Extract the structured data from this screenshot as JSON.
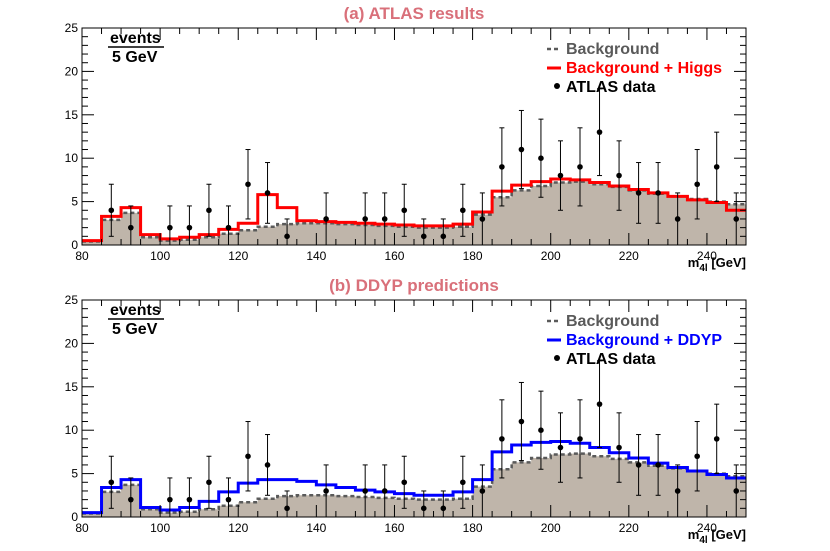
{
  "chart_data": [
    {
      "type": "histogram",
      "title": "(a) ATLAS results",
      "xlabel": "m",
      "xlabel_sub": "4l",
      "xlabel_unit": "[GeV]",
      "ylabel_top": "events",
      "ylabel_bottom": "5 GeV",
      "xlim": [
        80,
        250
      ],
      "ylim": [
        0,
        25
      ],
      "x_ticks": [
        80,
        100,
        120,
        140,
        160,
        180,
        200,
        220,
        240
      ],
      "y_ticks": [
        0,
        5,
        10,
        15,
        20,
        25
      ],
      "bin_edges": [
        80,
        85,
        90,
        95,
        100,
        105,
        110,
        115,
        120,
        125,
        130,
        135,
        140,
        145,
        150,
        155,
        160,
        165,
        170,
        175,
        180,
        185,
        190,
        195,
        200,
        205,
        210,
        215,
        220,
        225,
        230,
        235,
        240,
        245,
        250
      ],
      "series": [
        {
          "name": "Background",
          "style": "dashed-filled",
          "color": "#5a5a5a",
          "fill": "#bfb5aa",
          "values": [
            0.4,
            2.9,
            3.7,
            0.9,
            0.5,
            0.6,
            0.9,
            1.3,
            1.7,
            2.1,
            2.4,
            2.5,
            2.5,
            2.4,
            2.3,
            2.2,
            2.1,
            2.0,
            2.0,
            2.1,
            3.5,
            5.5,
            6.3,
            6.8,
            7.2,
            7.3,
            7.0,
            6.7,
            6.3,
            5.9,
            5.6,
            5.3,
            5.0,
            4.7
          ]
        },
        {
          "name": "Background + Higgs",
          "style": "solid",
          "color": "#ff0000",
          "values": [
            0.5,
            3.3,
            4.3,
            1.2,
            0.7,
            0.9,
            1.2,
            1.8,
            2.5,
            5.8,
            4.3,
            2.8,
            2.7,
            2.6,
            2.5,
            2.4,
            2.3,
            2.2,
            2.2,
            2.4,
            3.8,
            6.2,
            6.9,
            7.3,
            7.6,
            7.5,
            7.2,
            6.8,
            6.4,
            6.0,
            5.6,
            5.2,
            4.9,
            4.0
          ]
        }
      ],
      "data_points": {
        "name": "ATLAS data",
        "x": [
          87.5,
          92.5,
          102.5,
          107.5,
          112.5,
          117.5,
          122.5,
          127.5,
          132.5,
          142.5,
          152.5,
          157.5,
          162.5,
          167.5,
          172.5,
          177.5,
          182.5,
          187.5,
          192.5,
          197.5,
          202.5,
          207.5,
          212.5,
          217.5,
          222.5,
          227.5,
          232.5,
          237.5,
          242.5,
          247.5
        ],
        "y": [
          4,
          2,
          2,
          2,
          4,
          2,
          7,
          6,
          1,
          3,
          3,
          3,
          4,
          1,
          1,
          4,
          3,
          9,
          11,
          10,
          8,
          9,
          13,
          8,
          6,
          6,
          3,
          7,
          9,
          3
        ],
        "err": [
          3,
          2.5,
          2.5,
          2.5,
          3,
          2.5,
          4,
          3.5,
          2,
          3,
          3,
          3,
          3,
          2,
          2,
          3,
          3,
          4.5,
          4.5,
          4.5,
          4,
          4.5,
          5,
          4,
          3.5,
          3.5,
          3,
          4,
          4,
          3
        ]
      },
      "legend": {
        "position": "top-right",
        "entries": [
          "Background",
          "Background + Higgs",
          "ATLAS data"
        ]
      }
    },
    {
      "type": "histogram",
      "title": "(b) DDYP predictions",
      "xlabel": "m",
      "xlabel_sub": "4l",
      "xlabel_unit": "[GeV]",
      "ylabel_top": "events",
      "ylabel_bottom": "5 GeV",
      "xlim": [
        80,
        250
      ],
      "ylim": [
        0,
        25
      ],
      "x_ticks": [
        80,
        100,
        120,
        140,
        160,
        180,
        200,
        220,
        240
      ],
      "y_ticks": [
        0,
        5,
        10,
        15,
        20,
        25
      ],
      "bin_edges": [
        80,
        85,
        90,
        95,
        100,
        105,
        110,
        115,
        120,
        125,
        130,
        135,
        140,
        145,
        150,
        155,
        160,
        165,
        170,
        175,
        180,
        185,
        190,
        195,
        200,
        205,
        210,
        215,
        220,
        225,
        230,
        235,
        240,
        245,
        250
      ],
      "series": [
        {
          "name": "Background",
          "style": "dashed-filled",
          "color": "#5a5a5a",
          "fill": "#bfb5aa",
          "values": [
            0.4,
            2.9,
            3.7,
            0.9,
            0.5,
            0.6,
            0.9,
            1.3,
            1.7,
            2.1,
            2.4,
            2.5,
            2.5,
            2.4,
            2.3,
            2.2,
            2.1,
            2.0,
            2.0,
            2.1,
            3.5,
            5.5,
            6.3,
            6.8,
            7.2,
            7.3,
            7.0,
            6.7,
            6.3,
            5.9,
            5.6,
            5.3,
            5.0,
            4.7
          ]
        },
        {
          "name": "Background + DDYP",
          "style": "solid",
          "color": "#0000ff",
          "values": [
            0.5,
            3.4,
            4.3,
            1.1,
            0.8,
            1.1,
            1.8,
            2.9,
            3.9,
            4.3,
            4.3,
            4.1,
            3.7,
            3.4,
            3.1,
            2.9,
            2.7,
            2.5,
            2.5,
            2.9,
            4.3,
            7.5,
            8.3,
            8.6,
            8.7,
            8.5,
            8.0,
            7.4,
            6.8,
            6.2,
            5.7,
            5.3,
            4.9,
            4.5
          ]
        }
      ],
      "data_points": {
        "name": "ATLAS data",
        "x": [
          87.5,
          92.5,
          102.5,
          107.5,
          112.5,
          117.5,
          122.5,
          127.5,
          132.5,
          142.5,
          152.5,
          157.5,
          162.5,
          167.5,
          172.5,
          177.5,
          182.5,
          187.5,
          192.5,
          197.5,
          202.5,
          207.5,
          212.5,
          217.5,
          222.5,
          227.5,
          232.5,
          237.5,
          242.5,
          247.5
        ],
        "y": [
          4,
          2,
          2,
          2,
          4,
          2,
          7,
          6,
          1,
          3,
          3,
          3,
          4,
          1,
          1,
          4,
          3,
          9,
          11,
          10,
          8,
          9,
          13,
          8,
          6,
          6,
          3,
          7,
          9,
          3
        ],
        "err": [
          3,
          2.5,
          2.5,
          2.5,
          3,
          2.5,
          4,
          3.5,
          2,
          3,
          3,
          3,
          3,
          2,
          2,
          3,
          3,
          4.5,
          4.5,
          4.5,
          4,
          4.5,
          5,
          4,
          3.5,
          3.5,
          3,
          4,
          4,
          3
        ]
      },
      "legend": {
        "position": "top-right",
        "entries": [
          "Background",
          "Background + DDYP",
          "ATLAS data"
        ]
      }
    }
  ]
}
